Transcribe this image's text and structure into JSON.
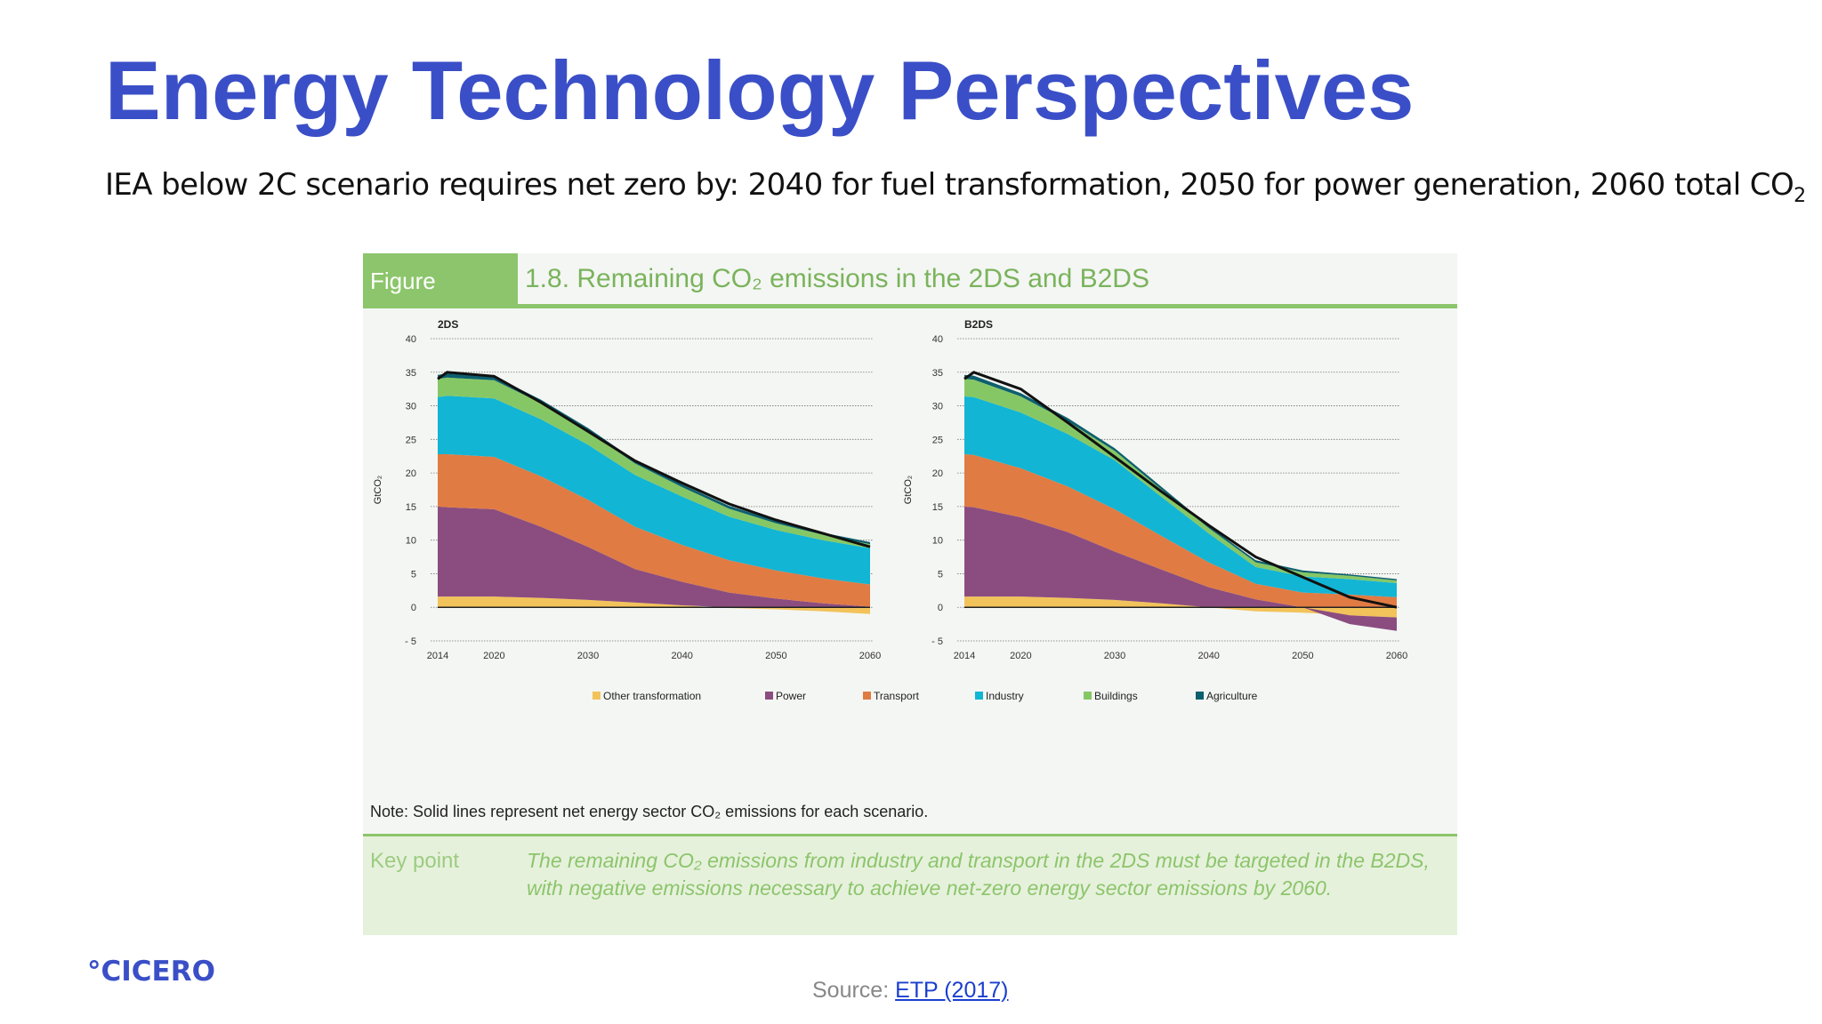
{
  "slide": {
    "title": "Energy Technology Perspectives",
    "subtitle_main": "IEA below 2C scenario requires net zero by: 2040 for fuel transformation, 2050 for power generation, 2060 total CO",
    "subtitle_sub": "2",
    "logo": "°CICERO",
    "source_label": "Source: ",
    "source_link": "ETP (2017)"
  },
  "figure": {
    "label": "Figure",
    "title": "1.8. Remaining CO₂ emissions in the 2DS and B2DS",
    "note": "Note: Solid lines represent net energy sector CO₂ emissions for each scenario.",
    "keypoint_label": "Key point",
    "keypoint_text": "The remaining CO₂ emissions from industry and transport in the 2DS must be targeted in the B2DS, with negative emissions necessary to achieve net-zero energy sector emissions by 2060."
  },
  "colors": {
    "Other transformation": "#f2c35b",
    "Power": "#8b4d80",
    "Transport": "#e07b43",
    "Industry": "#12b5d4",
    "Buildings": "#86c765",
    "Agriculture": "#0d5f6e"
  },
  "chart_data": [
    {
      "type": "area",
      "title": "2DS",
      "ylabel": "GtCO₂",
      "xlabel": "",
      "ylim": [
        -5,
        40
      ],
      "yticks": [
        40,
        35,
        30,
        25,
        20,
        15,
        10,
        5,
        0,
        -5
      ],
      "ytick_labels": [
        "40",
        "35",
        "30",
        "25",
        "20",
        "15",
        "10",
        "5",
        "0",
        "- 5"
      ],
      "xticks": [
        2014,
        2020,
        2030,
        2040,
        2050,
        2060
      ],
      "x": [
        2014,
        2015,
        2020,
        2025,
        2030,
        2035,
        2040,
        2045,
        2050,
        2055,
        2060
      ],
      "series": [
        {
          "name": "Other transformation",
          "values": [
            1.6,
            1.6,
            1.6,
            1.4,
            1.1,
            0.7,
            0.3,
            -0.1,
            -0.3,
            -0.6,
            -1.0
          ]
        },
        {
          "name": "Power",
          "values": [
            13.4,
            13.3,
            13.0,
            10.6,
            7.9,
            5.0,
            3.5,
            2.2,
            1.3,
            0.6,
            0.1
          ]
        },
        {
          "name": "Transport",
          "values": [
            7.8,
            7.9,
            7.8,
            7.5,
            7.0,
            6.3,
            5.5,
            4.8,
            4.2,
            3.7,
            3.3
          ]
        },
        {
          "name": "Industry",
          "values": [
            8.5,
            8.7,
            8.7,
            8.5,
            8.2,
            7.7,
            7.2,
            6.5,
            6.0,
            5.7,
            5.4
          ]
        },
        {
          "name": "Buildings",
          "values": [
            2.7,
            2.7,
            2.7,
            2.4,
            2.0,
            1.7,
            1.4,
            1.2,
            1.0,
            0.8,
            0.6
          ]
        },
        {
          "name": "Agriculture",
          "values": [
            0.6,
            0.6,
            0.6,
            0.5,
            0.5,
            0.5,
            0.4,
            0.4,
            0.4,
            0.3,
            0.3
          ]
        }
      ],
      "net_line": [
        34.0,
        35.0,
        34.4,
        30.5,
        26.2,
        21.8,
        18.5,
        15.4,
        13.0,
        11.0,
        9.0
      ]
    },
    {
      "type": "area",
      "title": "B2DS",
      "ylabel": "GtCO₂",
      "xlabel": "",
      "ylim": [
        -5,
        40
      ],
      "yticks": [
        40,
        35,
        30,
        25,
        20,
        15,
        10,
        5,
        0,
        -5
      ],
      "ytick_labels": [
        "40",
        "35",
        "30",
        "25",
        "20",
        "15",
        "10",
        "5",
        "0",
        "- 5"
      ],
      "xticks": [
        2014,
        2020,
        2030,
        2040,
        2050,
        2060
      ],
      "x": [
        2014,
        2015,
        2020,
        2025,
        2030,
        2035,
        2040,
        2045,
        2050,
        2055,
        2060
      ],
      "series": [
        {
          "name": "Other transformation",
          "values": [
            1.6,
            1.6,
            1.6,
            1.4,
            1.1,
            0.6,
            0.0,
            -0.6,
            -0.8,
            -1.2,
            -1.5
          ]
        },
        {
          "name": "Power",
          "values": [
            13.4,
            13.3,
            11.8,
            9.8,
            7.2,
            5.0,
            3.0,
            1.2,
            0.0,
            -1.3,
            -2.0
          ]
        },
        {
          "name": "Transport",
          "values": [
            7.8,
            7.8,
            7.3,
            6.8,
            6.3,
            5.0,
            3.7,
            2.3,
            2.2,
            1.9,
            1.5
          ]
        },
        {
          "name": "Industry",
          "values": [
            8.6,
            8.6,
            8.3,
            7.8,
            7.3,
            5.8,
            4.3,
            2.5,
            2.4,
            2.3,
            2.1
          ]
        },
        {
          "name": "Buildings",
          "values": [
            2.6,
            2.6,
            2.4,
            1.9,
            1.4,
            1.1,
            0.8,
            0.7,
            0.6,
            0.5,
            0.4
          ]
        },
        {
          "name": "Agriculture",
          "values": [
            0.6,
            0.6,
            0.5,
            0.5,
            0.4,
            0.4,
            0.3,
            0.3,
            0.3,
            0.2,
            0.2
          ]
        }
      ],
      "net_line": [
        34.0,
        35.0,
        32.5,
        27.5,
        22.4,
        17.2,
        12.2,
        7.5,
        4.5,
        1.5,
        0.0
      ]
    }
  ]
}
